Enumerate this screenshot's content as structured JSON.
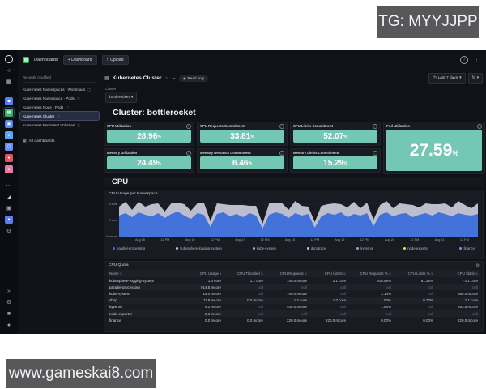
{
  "watermarks": {
    "top": "TG: MYYJJPP",
    "bottom": "www.gameskai8.com"
  },
  "topbar": {
    "dashboards_label": "Dashboards",
    "new_dashboard_label": "+ Dashboard",
    "upload_label": "Upload",
    "help_icon": "?",
    "kebab_icon": "⋮"
  },
  "rail": {
    "top": [
      {
        "name": "grafana-logo",
        "style": "ring",
        "color": "#e8e8ea"
      },
      {
        "name": "search-icon",
        "style": "glyph",
        "glyph": "○",
        "color": "#c7c9d1"
      },
      {
        "name": "apps-grid-icon",
        "style": "glyph",
        "glyph": "▦",
        "color": "#c7c9d1"
      }
    ],
    "apps": [
      {
        "name": "app-cube-icon",
        "style": "blob",
        "glyph": "◆",
        "color": "#4f7cf7"
      },
      {
        "name": "dashboards-app-icon",
        "style": "blob",
        "glyph": "▦",
        "color": "#35b56b",
        "selected": true
      },
      {
        "name": "app-panel-icon",
        "style": "blob",
        "glyph": "▣",
        "color": "#5584f0"
      },
      {
        "name": "app-eye-icon",
        "style": "blob",
        "glyph": "●",
        "color": "#58a6f5"
      },
      {
        "name": "app-camera-icon",
        "style": "blob",
        "glyph": "▢",
        "color": "#6a8df2"
      },
      {
        "name": "app-alert-icon",
        "style": "blob",
        "glyph": "●",
        "color": "#e5535f"
      },
      {
        "name": "app-hex-icon",
        "style": "blob",
        "glyph": "●",
        "color": "#e87da4"
      }
    ],
    "tools": [
      {
        "name": "more-apps-icon",
        "style": "glyph",
        "glyph": "⋯",
        "color": "#9aa0a9"
      },
      {
        "name": "analytics-icon",
        "style": "glyph",
        "glyph": "◢",
        "color": "#c7c9d1"
      },
      {
        "name": "snapshot-icon",
        "style": "glyph",
        "glyph": "▣",
        "color": "#9aa0a9"
      },
      {
        "name": "profile-icon",
        "style": "blob",
        "glyph": "●",
        "color": "#5a7df0"
      },
      {
        "name": "settings-gear-icon",
        "style": "glyph",
        "glyph": "⚙",
        "color": "#9aa0a9"
      }
    ],
    "bottom": [
      {
        "name": "expand-arrow-icon",
        "style": "glyph",
        "glyph": "»",
        "color": "#9aa0a9"
      },
      {
        "name": "admin-gear-icon",
        "style": "glyph",
        "glyph": "⚙",
        "color": "#9aa0a9"
      },
      {
        "name": "square-icon",
        "style": "glyph",
        "glyph": "■",
        "color": "#9aa0a9"
      },
      {
        "name": "circle-icon",
        "style": "glyph",
        "glyph": "●",
        "color": "#9aa0a9"
      }
    ]
  },
  "sidebar": {
    "section_label": "Recently modified",
    "items": [
      {
        "label": "Kubernetes Namespaces - Workloads"
      },
      {
        "label": "Kubernetes Namespace - Pods"
      },
      {
        "label": "Kubernetes Node - Pods"
      },
      {
        "label": "Kubernetes Cluster"
      },
      {
        "label": "Kubernetes Persistent Volumes"
      }
    ],
    "selected_index": 3,
    "all_dashboards_label": "All dashboards"
  },
  "header": {
    "title": "Kubernetes Cluster",
    "star_icon": "☆",
    "share_icon": "☁",
    "read_only_label": "Read only",
    "time_range": "Last 7 days",
    "refresh_icon": "↻",
    "caret_icon": "▾",
    "clock_icon": "◷"
  },
  "variables": {
    "label": "Cluster",
    "value": "bottlerocket"
  },
  "row_title": "Cluster: bottlerocket",
  "stats": [
    {
      "title": "CPU Utilization",
      "value": "28.96",
      "unit": "%"
    },
    {
      "title": "CPU Requests Commitment",
      "value": "33.81",
      "unit": "%"
    },
    {
      "title": "CPU Limits Commitment",
      "value": "52.07",
      "unit": "%"
    },
    {
      "title": "Memory Utilization",
      "value": "24.49",
      "unit": "%"
    },
    {
      "title": "Memory Requests Commitment",
      "value": "6.46",
      "unit": "%"
    },
    {
      "title": "Memory Limits Commitment",
      "value": "15.29",
      "unit": "%"
    },
    {
      "title": "Pod Utilization",
      "value": "27.59",
      "unit": "%"
    }
  ],
  "colors": {
    "stat_bg": "#74c7b5",
    "canvas": "#111217",
    "panel": "#181b22",
    "series_blue": "#3d6edb",
    "series_gray": "#ccccdc"
  },
  "cpu_section": {
    "title": "CPU"
  },
  "chart_data": {
    "type": "area",
    "title": "CPU Usage per Namespace",
    "stacked": true,
    "ylim": [
      0,
      4.6
    ],
    "y_ticks": [
      {
        "label": "4 core",
        "value": 4
      },
      {
        "label": "2 core",
        "value": 2
      },
      {
        "label": "0 mcore",
        "value": 0
      }
    ],
    "x_ticks": [
      "Aug 15",
      "12 PM",
      "Aug 16",
      "12 PM",
      "Aug 17",
      "12 PM",
      "Aug 18",
      "12 PM",
      "Aug 19",
      "12 PM",
      "Aug 20",
      "12 PM",
      "Aug 21",
      "12 PM"
    ],
    "series": [
      {
        "name": "parallel-processing",
        "color": "#3d6edb",
        "values": [
          2.6,
          2.9,
          2.4,
          3.0,
          2.7,
          2.5,
          2.9,
          2.3,
          2.8,
          3.1,
          2.6,
          2.2,
          2.9,
          2.7,
          1.2,
          2.8,
          3.0,
          2.5,
          2.8,
          2.4,
          2.9,
          2.6,
          1.0,
          2.7,
          3.0,
          2.8,
          2.3,
          2.9,
          2.6,
          2.8,
          1.1,
          2.5,
          2.9,
          2.7,
          3.0,
          2.4,
          2.8,
          2.6,
          2.9,
          1.3,
          2.7,
          3.0,
          2.5,
          2.8,
          2.9,
          2.4,
          2.7,
          2.9,
          2.6,
          3.0,
          2.8,
          2.5,
          2.9,
          2.7,
          2.6,
          2.8
        ]
      },
      {
        "name": "kubesphere-logging-system",
        "color": "#ccccdc",
        "values": [
          1.1,
          1.4,
          0.9,
          1.3,
          1.0,
          1.5,
          1.2,
          0.8,
          1.3,
          1.1,
          1.4,
          1.0,
          1.2,
          1.5,
          0.7,
          1.3,
          1.0,
          1.4,
          1.1,
          1.5,
          0.9,
          1.2,
          0.6,
          1.4,
          1.1,
          1.3,
          1.0,
          1.5,
          1.2,
          0.9,
          0.7,
          1.3,
          1.1,
          1.4,
          1.0,
          1.2,
          1.5,
          0.9,
          1.3,
          0.8,
          1.2,
          1.4,
          1.0,
          1.3,
          1.1,
          1.5,
          0.9,
          1.2,
          1.4,
          1.0,
          1.3,
          1.1,
          1.5,
          1.2,
          0.9,
          1.3
        ]
      }
    ],
    "legend": [
      {
        "name": "parallel-processing",
        "color": "#3d6edb"
      },
      {
        "name": "kubesphere-logging-system",
        "color": "#ccccdc"
      },
      {
        "name": "kube-system",
        "color": "#8ab8ff"
      },
      {
        "name": "dynatrace",
        "color": "#c8c9ce"
      },
      {
        "name": "kyverno",
        "color": "#96a0ae"
      },
      {
        "name": "node-exporter",
        "color": "#fade2a"
      },
      {
        "name": "finance",
        "color": "#b877d9"
      }
    ],
    "legend_position": "bottom",
    "grid": true
  },
  "quota": {
    "title": "CPU Quota",
    "columns": [
      "Name",
      "CPU Usage",
      "CPU Throttled",
      "CPU Requests",
      "CPU Limits",
      "CPU Requests %",
      "CPU Limits %",
      "CPU Slack"
    ],
    "sorted_column": "CPU Usage",
    "rows": [
      [
        "kubesphere-logging-system",
        "1.3 core",
        "1.1 core",
        "140.0 mcore",
        "2.1 core",
        "918.98%",
        "61.26%",
        "-1.1 core"
      ],
      [
        "parallel-processing",
        "914.5 mcore",
        "null",
        "null",
        "null",
        "null",
        "null",
        "null"
      ],
      [
        "kube-system",
        "15.0 mcore",
        "null",
        "700.0 mcore",
        "null",
        "2.14%",
        "null",
        "685.0 mcore"
      ],
      [
        "shop",
        "11.9 mcore",
        "0.0 mcore",
        "1.2 core",
        "1.7 core",
        "1.03%",
        "0.70%",
        "1.1 core"
      ],
      [
        "kyverno",
        "6.2 mcore",
        "null",
        "400.0 mcore",
        "null",
        "1.54%",
        "null",
        "393.8 mcore"
      ],
      [
        "node-exporter",
        "2.1 mcore",
        "null",
        "null",
        "null",
        "null",
        "null",
        "null"
      ],
      [
        "finance",
        "0.0 mcore",
        "0.0 mcore",
        "220.0 mcore",
        "220.0 mcore",
        "0.00%",
        "0.00%",
        "220.0 mcore"
      ]
    ]
  }
}
